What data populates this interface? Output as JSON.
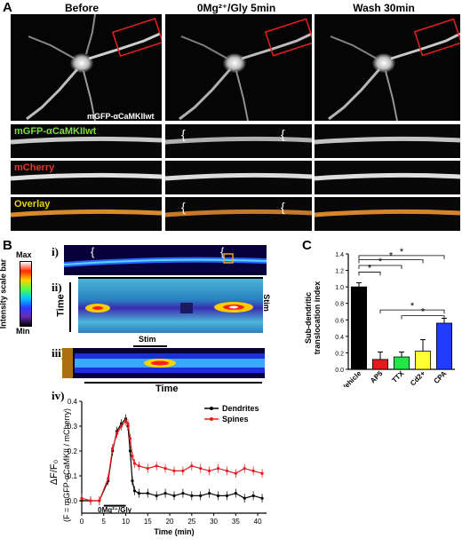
{
  "panel_a": {
    "label": "A",
    "columns": [
      "Before",
      "0Mg²⁺/Gly 5min",
      "Wash 30min"
    ],
    "image_label": "mGFP-αCaMKIIwt",
    "strip_labels": [
      "mGFP-αCaMKIIwt",
      "mCherry",
      "Overlay"
    ],
    "strip_label_colors": [
      "#7fd94a",
      "#e0382b",
      "#e8d200"
    ]
  },
  "panel_b": {
    "label": "B",
    "sub_i": "i)",
    "sub_ii": "ii)",
    "sub_iii": "iii)",
    "sub_iv": "iv)",
    "scale_max": "Max",
    "scale_min": "Min",
    "scale_title": "Intensity scale bar",
    "time_label_ii": "Time",
    "stim_label_ii": "Stim",
    "stim_label_iii": "Stim",
    "time_label_iii": "Time"
  },
  "panel_c": {
    "label": "C",
    "ylabel_line1": "Sub-dendritic",
    "ylabel_line2": "translocation index",
    "significance": "*",
    "colors": [
      "#000000",
      "#e41a1c",
      "#22e64a",
      "#ffff33",
      "#1f3cff"
    ]
  },
  "panel_iv_text": {
    "ylabel_main": "ΔF/F₀",
    "ylabel_sub": "(F = mGFP-αCaMKII / mCherry)",
    "stim_text": "0Mg²⁺/Gly",
    "xlabel": "Time (min)",
    "legend_dendrites": "Dendrites",
    "legend_spines": "Spines",
    "colors": {
      "dendrites": "#000000",
      "spines": "#e41a1c"
    }
  },
  "chart_data": [
    {
      "type": "bar",
      "categories": [
        "Vehicle",
        "AP5",
        "TTX",
        "Cd2+",
        "CPA"
      ],
      "values": [
        1.0,
        0.12,
        0.15,
        0.22,
        0.56
      ],
      "errors": [
        0.05,
        0.09,
        0.06,
        0.14,
        0.06
      ],
      "ylabel": "Sub-dendritic translocation index",
      "ylim": [
        0,
        1.4
      ],
      "yticks": [
        "0.0",
        "0.2",
        "0.4",
        "0.6",
        "0.8",
        "1.0",
        "1.2",
        "1.4"
      ],
      "significance": [
        [
          "Vehicle",
          "AP5"
        ],
        [
          "Vehicle",
          "TTX"
        ],
        [
          "Vehicle",
          "Cd2+"
        ],
        [
          "Vehicle",
          "CPA"
        ],
        [
          "AP5",
          "CPA"
        ],
        [
          "TTX",
          "CPA"
        ]
      ]
    },
    {
      "type": "line",
      "xlabel": "Time (min)",
      "ylabel": "ΔF/F₀",
      "xlim": [
        0,
        42
      ],
      "ylim": [
        -0.05,
        0.4
      ],
      "xticks": [
        "0",
        "5",
        "10",
        "15",
        "20",
        "25",
        "30",
        "35",
        "40"
      ],
      "yticks": [
        "0.0",
        "0.1",
        "0.2",
        "0.3",
        "0.4"
      ],
      "x": [
        0,
        2,
        4,
        6,
        7,
        8,
        9,
        10,
        10.5,
        11,
        11.5,
        12,
        13,
        15,
        17,
        19,
        21,
        23,
        25,
        27,
        29,
        31,
        33,
        35,
        37,
        39,
        41
      ],
      "series": [
        {
          "name": "Dendrites",
          "values": [
            0.0,
            0.0,
            0.0,
            0.08,
            0.2,
            0.28,
            0.31,
            0.33,
            0.3,
            0.2,
            0.08,
            0.04,
            0.03,
            0.03,
            0.02,
            0.03,
            0.02,
            0.03,
            0.02,
            0.02,
            0.03,
            0.02,
            0.02,
            0.03,
            0.01,
            0.02,
            0.01
          ]
        },
        {
          "name": "Spines",
          "values": [
            0.01,
            0.0,
            0.0,
            0.09,
            0.21,
            0.27,
            0.3,
            0.32,
            0.31,
            0.25,
            0.18,
            0.15,
            0.14,
            0.13,
            0.14,
            0.13,
            0.12,
            0.12,
            0.14,
            0.13,
            0.12,
            0.13,
            0.12,
            0.11,
            0.13,
            0.12,
            0.11
          ]
        }
      ]
    }
  ]
}
